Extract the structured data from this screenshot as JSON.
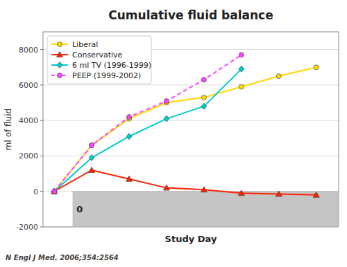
{
  "chart_data": {
    "type": "line",
    "title": "Cumulative fluid balance",
    "x_label": "Study Day",
    "y_label": "ml of fluid",
    "xlim": [
      -0.3,
      7.6
    ],
    "ylim": [
      -2000,
      9000
    ],
    "yticks": [
      -2000,
      0,
      2000,
      4000,
      6000,
      8000
    ],
    "tick_labels": "y",
    "grid": true,
    "legend": "upper left",
    "series": [
      {
        "name": "Liberal",
        "color": "#FFD700",
        "marker": "circle",
        "line_style": "solid",
        "x": [
          0,
          1,
          2,
          3,
          4,
          5,
          6,
          7
        ],
        "values": [
          0,
          2600,
          4100,
          5000,
          5300,
          5900,
          6500,
          7000
        ]
      },
      {
        "name": "Conservative",
        "color": "#FF2200",
        "marker": "triangle",
        "line_style": "solid",
        "x": [
          0,
          1,
          2,
          3,
          4,
          5,
          6,
          7
        ],
        "values": [
          0,
          1200,
          700,
          200,
          100,
          -100,
          -150,
          -200
        ]
      },
      {
        "name": "6 ml TV (1996-1999)",
        "color": "#00CCCC",
        "marker": "diamond",
        "line_style": "solid",
        "x": [
          0,
          1,
          2,
          3,
          4,
          5
        ],
        "values": [
          0,
          1900,
          3100,
          4100,
          4800,
          6900
        ]
      },
      {
        "name": "PEEP (1999-2002)",
        "color": "#FF44FF",
        "marker": "circle",
        "line_style": "dashed",
        "x": [
          0,
          1,
          2,
          3,
          4,
          5
        ],
        "values": [
          0,
          2600,
          4200,
          5100,
          6300,
          7700
        ]
      }
    ],
    "annotations": [
      {
        "text": "0",
        "x0": 0.5,
        "x1": 8,
        "y0": -2000,
        "y1": 0,
        "color": "#BBBBBB"
      },
      {
        "text": "N Engl J Med. 2006;354:2564"
      }
    ]
  }
}
